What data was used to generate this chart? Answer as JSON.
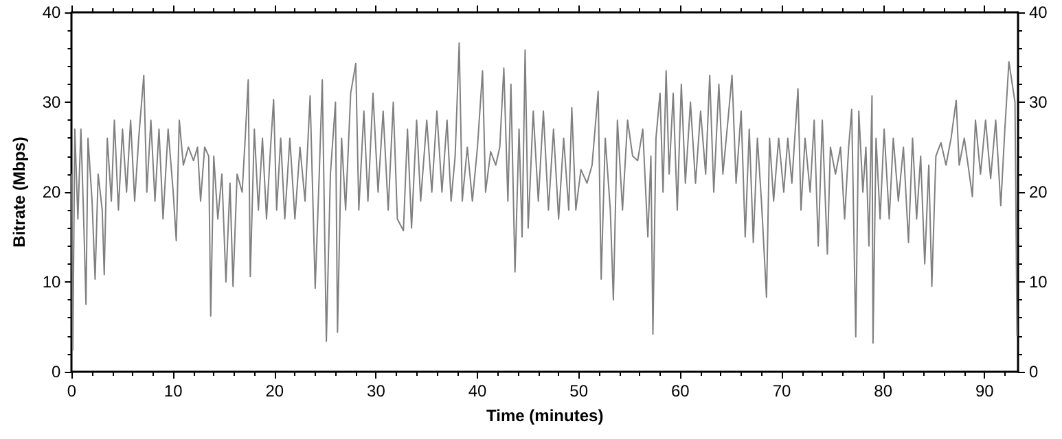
{
  "chart_data": {
    "type": "line",
    "xlabel": "Time (minutes)",
    "ylabel": "Bitrate (Mbps)",
    "xlim": [
      0,
      93.3
    ],
    "xticks": [
      0,
      10,
      20,
      30,
      40,
      50,
      60,
      70,
      80,
      90
    ],
    "ylim": [
      0,
      40
    ],
    "yticks": [
      0,
      10,
      20,
      30,
      40
    ],
    "y2lim": [
      0,
      40
    ],
    "y2ticks": [
      0,
      10,
      20,
      30,
      40
    ],
    "grid": false,
    "marker": "none",
    "line_style": "solid",
    "series": [
      {
        "color": "#808080",
        "x": [
          0,
          0.1,
          0.3,
          0.6,
          0.9,
          1.2,
          1.4,
          1.6,
          2.0,
          2.3,
          2.6,
          3.0,
          3.2,
          3.5,
          3.9,
          4.2,
          4.6,
          5.0,
          5.4,
          5.8,
          6.2,
          6.6,
          7.1,
          7.4,
          7.8,
          8.2,
          8.6,
          9.0,
          9.5,
          10.0,
          10.3,
          10.6,
          11.0,
          11.5,
          12.0,
          12.4,
          12.7,
          13.1,
          13.5,
          13.7,
          14.0,
          14.4,
          14.8,
          15.2,
          15.6,
          15.9,
          16.3,
          16.8,
          17.1,
          17.4,
          17.6,
          18.0,
          18.4,
          18.8,
          19.2,
          19.6,
          19.9,
          20.2,
          20.6,
          21.0,
          21.5,
          22.0,
          22.5,
          23.0,
          23.5,
          24.0,
          24.4,
          24.7,
          25.1,
          25.5,
          26.0,
          26.2,
          26.6,
          27.0,
          27.5,
          28.0,
          28.3,
          28.8,
          29.2,
          29.7,
          30.2,
          30.7,
          31.2,
          31.7,
          32.1,
          32.7,
          33.1,
          33.5,
          34.0,
          34.4,
          35.0,
          35.5,
          36.0,
          36.5,
          37.0,
          37.4,
          37.8,
          38.2,
          38.5,
          39.0,
          39.5,
          40.0,
          40.5,
          40.8,
          41.3,
          41.8,
          42.2,
          42.6,
          43.0,
          43.3,
          43.7,
          44.1,
          44.4,
          44.7,
          45.0,
          45.5,
          46.0,
          46.5,
          47.0,
          47.5,
          48.0,
          48.5,
          49.0,
          49.3,
          49.7,
          50.2,
          50.8,
          51.3,
          51.9,
          52.2,
          52.6,
          53.1,
          53.4,
          53.8,
          54.3,
          54.8,
          55.3,
          55.8,
          56.3,
          56.8,
          57.1,
          57.3,
          57.6,
          58.0,
          58.3,
          58.6,
          58.9,
          59.3,
          59.7,
          60.1,
          60.5,
          61.0,
          61.5,
          62.0,
          62.5,
          62.9,
          63.3,
          63.8,
          64.2,
          64.7,
          65.1,
          65.5,
          66.0,
          66.4,
          66.8,
          67.2,
          67.6,
          68.0,
          68.5,
          68.8,
          69.2,
          69.7,
          70.2,
          70.6,
          71.0,
          71.6,
          71.9,
          72.3,
          72.8,
          73.2,
          73.6,
          74.0,
          74.5,
          74.8,
          75.3,
          75.8,
          76.2,
          76.6,
          76.9,
          77.2,
          77.3,
          77.6,
          78.0,
          78.3,
          78.6,
          78.9,
          79.0,
          79.3,
          79.7,
          80.1,
          80.6,
          81.0,
          81.5,
          82.0,
          82.5,
          82.9,
          83.3,
          83.7,
          84.1,
          84.5,
          84.8,
          85.2,
          85.7,
          86.2,
          86.7,
          87.2,
          87.5,
          88.0,
          88.5,
          88.8,
          89.1,
          89.6,
          90.1,
          90.6,
          91.1,
          91.6,
          92.0,
          92.4,
          93.0,
          93.2
        ],
        "values": [
          22,
          2.4,
          27,
          17,
          27,
          16,
          7.5,
          26,
          19,
          10.3,
          22,
          18,
          10.8,
          26,
          19,
          28,
          18,
          27,
          20,
          28,
          19,
          26,
          33,
          20,
          28,
          19,
          27,
          17,
          27,
          20,
          14.6,
          28,
          23,
          25,
          23.5,
          25,
          19,
          25,
          24,
          6.2,
          24,
          17,
          22,
          10,
          21,
          9.5,
          22,
          20,
          26,
          32.5,
          10.6,
          27,
          18,
          26,
          17,
          25,
          30.3,
          18,
          26,
          17,
          26,
          17,
          25,
          19,
          30.7,
          9.3,
          22,
          32.5,
          3.4,
          22,
          30,
          4.4,
          26,
          18,
          31,
          34.3,
          18,
          29,
          19,
          31,
          20,
          29,
          18,
          30,
          17,
          15.7,
          27,
          16,
          28,
          19,
          28,
          20,
          29,
          20,
          28,
          19,
          24,
          36.6,
          19,
          25,
          19,
          25,
          33.5,
          20,
          24.5,
          23,
          25,
          33.8,
          19,
          32,
          11.1,
          27,
          15,
          35.8,
          16,
          29,
          19,
          29,
          18,
          27,
          17,
          26,
          18,
          29.4,
          18,
          22.5,
          21,
          23,
          31.2,
          10.3,
          26,
          18,
          8,
          28,
          18,
          28,
          24,
          23.5,
          27,
          15,
          24,
          4.2,
          26,
          31,
          20,
          33.5,
          22,
          31,
          18,
          32,
          21,
          30,
          21,
          29,
          22,
          33,
          20,
          32,
          22,
          28,
          33,
          21,
          29,
          15,
          27,
          14.4,
          26,
          19,
          8.3,
          26,
          19,
          26,
          20,
          26,
          21,
          31.5,
          18,
          26,
          20,
          28,
          14,
          28,
          13.1,
          25,
          22,
          25,
          17,
          25,
          29.2,
          10,
          3.9,
          29,
          20,
          25,
          14,
          30.7,
          3.2,
          26,
          17,
          27,
          17,
          26,
          19,
          25,
          14.4,
          26,
          17,
          24,
          12,
          23,
          9.5,
          24,
          25.5,
          23,
          26,
          30.2,
          23,
          26,
          22,
          19.5,
          28,
          22,
          28,
          21.5,
          28,
          18.5,
          27,
          34.5,
          30,
          4
        ]
      }
    ]
  }
}
